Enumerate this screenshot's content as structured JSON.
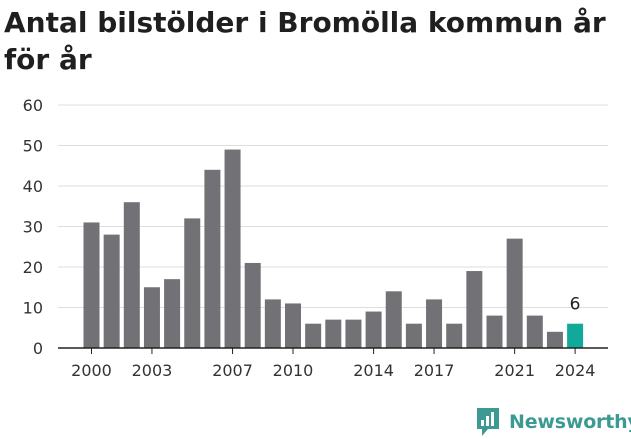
{
  "title": "Antal bilstölder i Bromölla kommun år för år",
  "brand": {
    "name": "Newsworthy",
    "icon": "newsworthy-logo-icon",
    "color": "#3d9a92"
  },
  "colors": {
    "bar": "#727176",
    "highlight": "#11a99a",
    "grid": "#dedede",
    "axis": "#222222"
  },
  "chart_data": {
    "type": "bar",
    "title": "Antal bilstölder i Bromölla kommun år för år",
    "xlabel": "",
    "ylabel": "",
    "ylim": [
      0,
      60
    ],
    "yticks": [
      0,
      10,
      20,
      30,
      40,
      50,
      60
    ],
    "grid": true,
    "categories": [
      "2000",
      "2001",
      "2002",
      "2003",
      "2004",
      "2005",
      "2006",
      "2007",
      "2008",
      "2009",
      "2010",
      "2011",
      "2012",
      "2013",
      "2014",
      "2015",
      "2016",
      "2017",
      "2018",
      "2019",
      "2020",
      "2021",
      "2022",
      "2023",
      "2024"
    ],
    "values": [
      31,
      28,
      36,
      15,
      17,
      32,
      44,
      49,
      21,
      12,
      11,
      6,
      7,
      7,
      9,
      14,
      6,
      12,
      6,
      19,
      8,
      27,
      8,
      4,
      6
    ],
    "xtick_labels": [
      "2000",
      "2003",
      "2007",
      "2010",
      "2014",
      "2017",
      "2021",
      "2024"
    ],
    "highlight_index": 24,
    "annotations": [
      {
        "category": "2024",
        "text": "6"
      }
    ]
  }
}
